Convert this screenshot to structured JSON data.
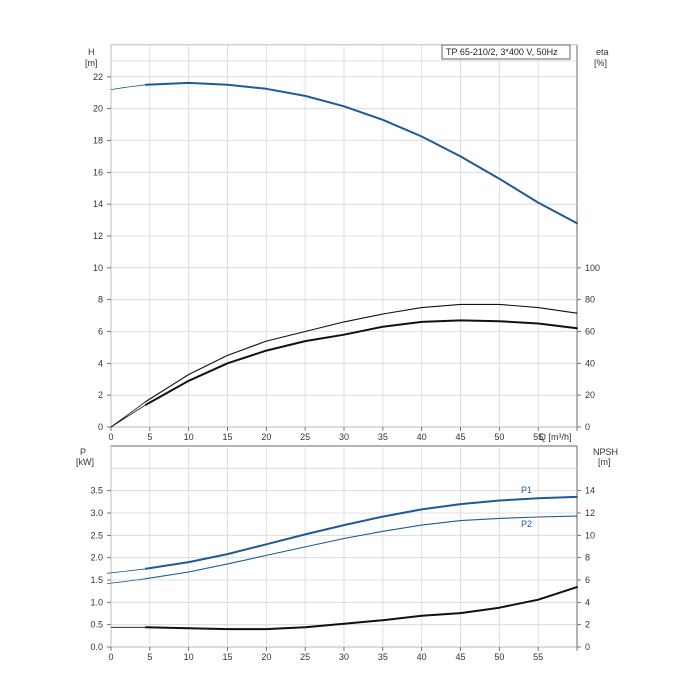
{
  "chart_data": [
    {
      "type": "line",
      "title": "TP 65-210/2, 3*400 V, 50Hz",
      "x_label": "Q [m³/h]",
      "x_range": [
        0,
        60
      ],
      "x_ticks": [
        0,
        5,
        10,
        15,
        20,
        25,
        30,
        35,
        40,
        45,
        50,
        55
      ],
      "y_left_label": [
        "H",
        "[m]"
      ],
      "y_left_range": [
        0,
        24
      ],
      "y_left_ticks": [
        0,
        2,
        4,
        6,
        8,
        10,
        12,
        14,
        16,
        18,
        20,
        22
      ],
      "y_right_label": [
        "eta",
        "[%]"
      ],
      "y_right_range": [
        0,
        240
      ],
      "y_right_ticks": [
        0,
        20,
        40,
        60,
        80,
        100
      ],
      "grid": true,
      "series": [
        {
          "axis": "left",
          "color": "#1f5a96",
          "x": [
            0,
            2,
            4.5,
            10,
            15,
            20,
            25,
            30,
            35,
            40,
            45,
            50,
            55,
            60
          ],
          "y": [
            21.2,
            21.35,
            21.5,
            21.62,
            21.5,
            21.25,
            20.8,
            20.15,
            19.3,
            18.25,
            17.0,
            15.6,
            14.1,
            12.8
          ]
        },
        {
          "axis": "right",
          "color": "#111111",
          "x": [
            0,
            4.5,
            10,
            15,
            20,
            25,
            30,
            35,
            40,
            45,
            50,
            55,
            60
          ],
          "y": [
            0,
            16,
            33,
            45,
            54,
            60,
            66,
            71,
            75,
            77,
            77,
            75,
            71.5
          ]
        },
        {
          "axis": "right",
          "color": "#111111",
          "x": [
            0,
            4.5,
            10,
            15,
            20,
            25,
            30,
            35,
            40,
            45,
            50,
            55,
            60
          ],
          "y": [
            0,
            14,
            29,
            40,
            48,
            54,
            58,
            63,
            66,
            67,
            66.5,
            65,
            62
          ]
        }
      ]
    },
    {
      "type": "line",
      "x_range": [
        0,
        60
      ],
      "x_ticks": [
        0,
        5,
        10,
        15,
        20,
        25,
        30,
        35,
        40,
        45,
        50,
        55
      ],
      "y_left_label": [
        "P",
        "[kW]"
      ],
      "y_left_range": [
        0,
        4.5
      ],
      "y_left_ticks": [
        "0.0",
        "0.5",
        "1.0",
        "1.5",
        "2.0",
        "2.5",
        "3.0",
        "3.5"
      ],
      "y_right_label": [
        "NPSH",
        "[m]"
      ],
      "y_right_range": [
        0,
        18
      ],
      "y_right_ticks": [
        0,
        2,
        4,
        6,
        8,
        10,
        12,
        14
      ],
      "grid": true,
      "series": [
        {
          "name": "P1",
          "axis": "left",
          "color": "#1f5a96",
          "x": [
            -0.5,
            2,
            4.5,
            10,
            15,
            20,
            25,
            30,
            35,
            40,
            45,
            50,
            55,
            60
          ],
          "y": [
            1.65,
            1.7,
            1.75,
            1.9,
            2.08,
            2.3,
            2.52,
            2.73,
            2.92,
            3.08,
            3.2,
            3.28,
            3.33,
            3.36
          ]
        },
        {
          "name": "P2",
          "axis": "left",
          "color": "#1f5a96",
          "x": [
            -0.5,
            2,
            4.5,
            10,
            15,
            20,
            25,
            30,
            35,
            40,
            45,
            50,
            55,
            60
          ],
          "y": [
            1.42,
            1.47,
            1.53,
            1.68,
            1.86,
            2.05,
            2.24,
            2.43,
            2.59,
            2.73,
            2.83,
            2.88,
            2.91,
            2.93
          ]
        },
        {
          "axis": "right",
          "color": "#111111",
          "x": [
            0,
            4.5,
            10,
            15,
            20,
            25,
            30,
            35,
            40,
            45,
            50,
            55,
            60
          ],
          "y": [
            1.76,
            1.76,
            1.68,
            1.6,
            1.6,
            1.76,
            2.08,
            2.4,
            2.8,
            3.04,
            3.52,
            4.24,
            5.36
          ]
        }
      ]
    }
  ]
}
